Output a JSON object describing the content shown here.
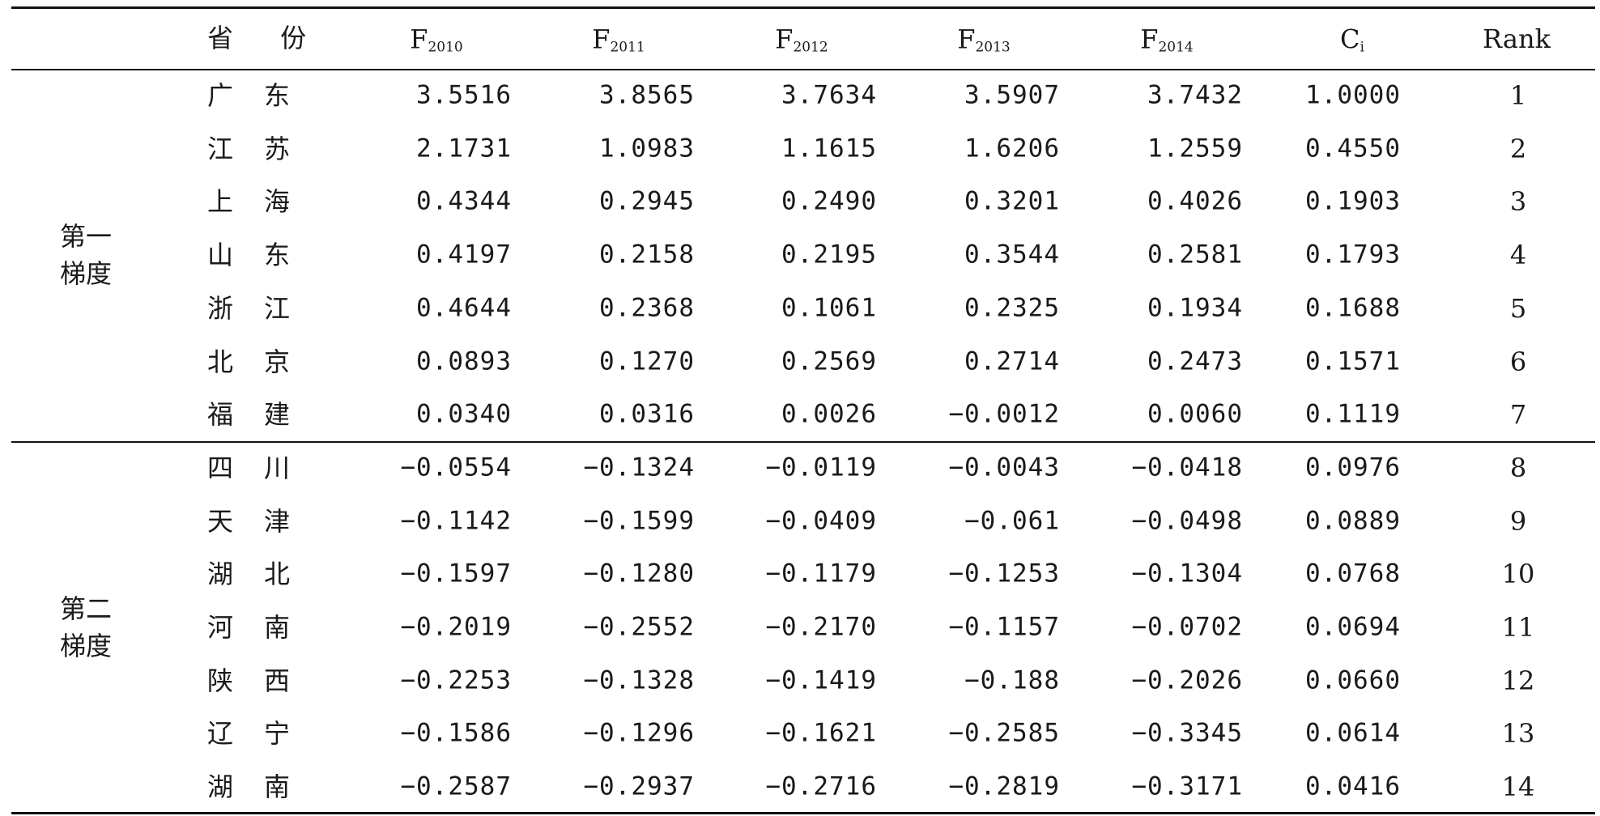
{
  "table": {
    "headers": {
      "province": "省 份",
      "f2010": {
        "base": "F",
        "sub": "2010"
      },
      "f2011": {
        "base": "F",
        "sub": "2011"
      },
      "f2012": {
        "base": "F",
        "sub": "2012"
      },
      "f2013": {
        "base": "F",
        "sub": "2013"
      },
      "f2014": {
        "base": "F",
        "sub": "2014"
      },
      "ci": {
        "base": "C",
        "sub": "i"
      },
      "rank": "Rank"
    },
    "groups": [
      {
        "name": "第一\n梯度",
        "rows": [
          {
            "province": [
              "广",
              "东"
            ],
            "f2010": "3.5516",
            "f2011": "3.8565",
            "f2012": "3.7634",
            "f2013": "3.5907",
            "f2014": "3.7432",
            "ci": "1.0000",
            "rank": "1"
          },
          {
            "province": [
              "江",
              "苏"
            ],
            "f2010": "2.1731",
            "f2011": "1.0983",
            "f2012": "1.1615",
            "f2013": "1.6206",
            "f2014": "1.2559",
            "ci": "0.4550",
            "rank": "2"
          },
          {
            "province": [
              "上",
              "海"
            ],
            "f2010": "0.4344",
            "f2011": "0.2945",
            "f2012": "0.2490",
            "f2013": "0.3201",
            "f2014": "0.4026",
            "ci": "0.1903",
            "rank": "3"
          },
          {
            "province": [
              "山",
              "东"
            ],
            "f2010": "0.4197",
            "f2011": "0.2158",
            "f2012": "0.2195",
            "f2013": "0.3544",
            "f2014": "0.2581",
            "ci": "0.1793",
            "rank": "4"
          },
          {
            "province": [
              "浙",
              "江"
            ],
            "f2010": "0.4644",
            "f2011": "0.2368",
            "f2012": "0.1061",
            "f2013": "0.2325",
            "f2014": "0.1934",
            "ci": "0.1688",
            "rank": "5"
          },
          {
            "province": [
              "北",
              "京"
            ],
            "f2010": "0.0893",
            "f2011": "0.1270",
            "f2012": "0.2569",
            "f2013": "0.2714",
            "f2014": "0.2473",
            "ci": "0.1571",
            "rank": "6"
          },
          {
            "province": [
              "福",
              "建"
            ],
            "f2010": "0.0340",
            "f2011": "0.0316",
            "f2012": "0.0026",
            "f2013": "−0.0012",
            "f2014": "0.0060",
            "ci": "0.1119",
            "rank": "7"
          }
        ]
      },
      {
        "name": "第二\n梯度",
        "rows": [
          {
            "province": [
              "四",
              "川"
            ],
            "f2010": "−0.0554",
            "f2011": "−0.1324",
            "f2012": "−0.0119",
            "f2013": "−0.0043",
            "f2014": "−0.0418",
            "ci": "0.0976",
            "rank": "8"
          },
          {
            "province": [
              "天",
              "津"
            ],
            "f2010": "−0.1142",
            "f2011": "−0.1599",
            "f2012": "−0.0409",
            "f2013": "−0.061",
            "f2014": "−0.0498",
            "ci": "0.0889",
            "rank": "9"
          },
          {
            "province": [
              "湖",
              "北"
            ],
            "f2010": "−0.1597",
            "f2011": "−0.1280",
            "f2012": "−0.1179",
            "f2013": "−0.1253",
            "f2014": "−0.1304",
            "ci": "0.0768",
            "rank": "10"
          },
          {
            "province": [
              "河",
              "南"
            ],
            "f2010": "−0.2019",
            "f2011": "−0.2552",
            "f2012": "−0.2170",
            "f2013": "−0.1157",
            "f2014": "−0.0702",
            "ci": "0.0694",
            "rank": "11"
          },
          {
            "province": [
              "陕",
              "西"
            ],
            "f2010": "−0.2253",
            "f2011": "−0.1328",
            "f2012": "−0.1419",
            "f2013": "−0.188",
            "f2014": "−0.2026",
            "ci": "0.0660",
            "rank": "12"
          },
          {
            "province": [
              "辽",
              "宁"
            ],
            "f2010": "−0.1586",
            "f2011": "−0.1296",
            "f2012": "−0.1621",
            "f2013": "−0.2585",
            "f2014": "−0.3345",
            "ci": "0.0614",
            "rank": "13"
          },
          {
            "province": [
              "湖",
              "南"
            ],
            "f2010": "−0.2587",
            "f2011": "−0.2937",
            "f2012": "−0.2716",
            "f2013": "−0.2819",
            "f2014": "−0.3171",
            "ci": "0.0416",
            "rank": "14"
          }
        ]
      }
    ]
  }
}
